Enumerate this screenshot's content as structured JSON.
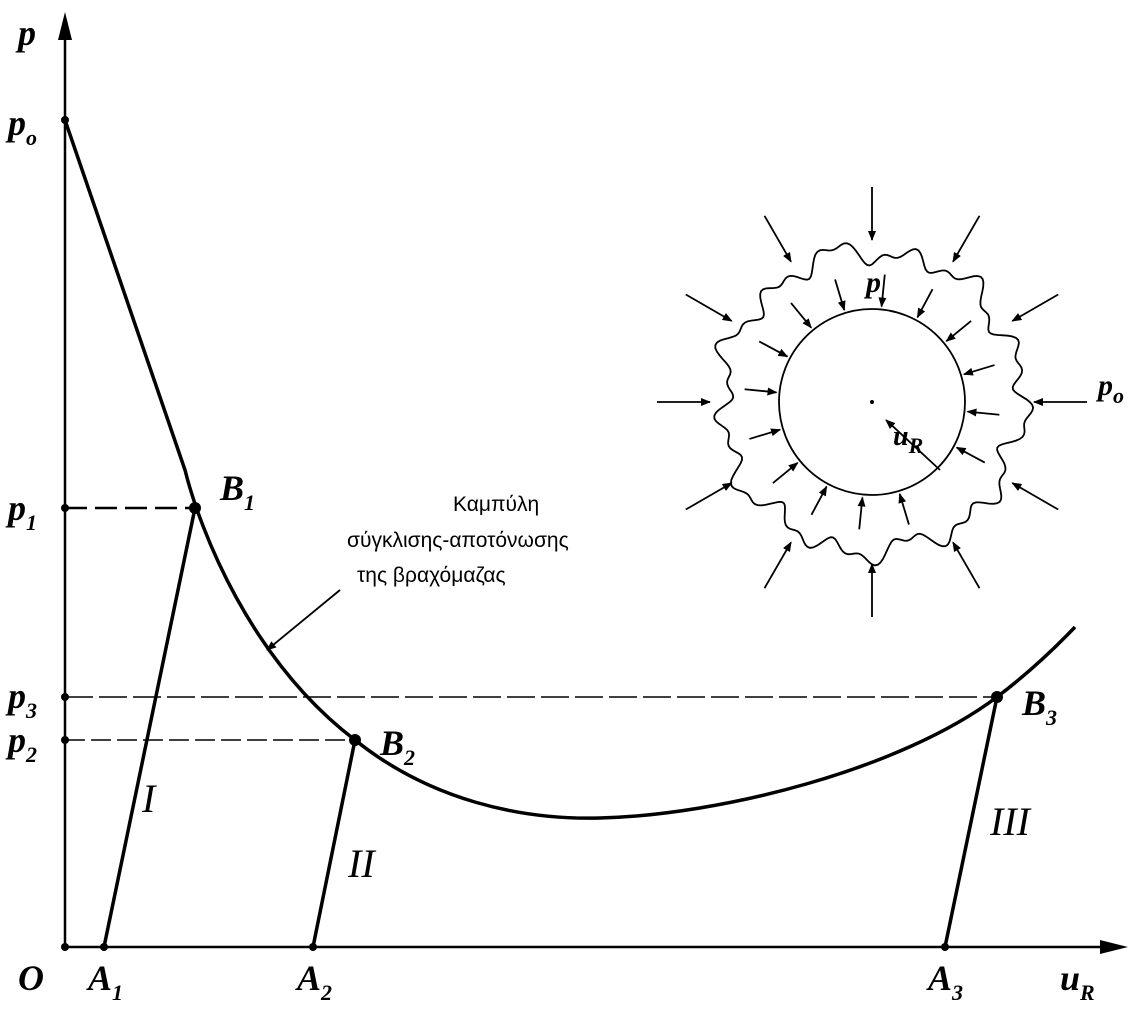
{
  "axes": {
    "y_label": "p",
    "x_label": {
      "base": "u",
      "sub": "R"
    },
    "origin": "O"
  },
  "y_labels": [
    {
      "base": "p",
      "sub": "o"
    },
    {
      "base": "p",
      "sub": "1"
    },
    {
      "base": "p",
      "sub": "3"
    },
    {
      "base": "p",
      "sub": "2"
    }
  ],
  "x_labels": [
    {
      "base": "A",
      "sub": "1"
    },
    {
      "base": "A",
      "sub": "2"
    },
    {
      "base": "A",
      "sub": "3"
    }
  ],
  "points": [
    {
      "base": "B",
      "sub": "1"
    },
    {
      "base": "B",
      "sub": "2"
    },
    {
      "base": "B",
      "sub": "3"
    }
  ],
  "lines": [
    "I",
    "II",
    "III"
  ],
  "curve_label": [
    "Καμπύλη",
    "σύγκλισης-αποτόνωσης",
    "της βραχόμαζας"
  ],
  "inset": {
    "inner_pressure": "p",
    "outer_pressure": {
      "base": "p",
      "sub": "o"
    },
    "displacement": {
      "base": "u",
      "sub": "R"
    }
  }
}
